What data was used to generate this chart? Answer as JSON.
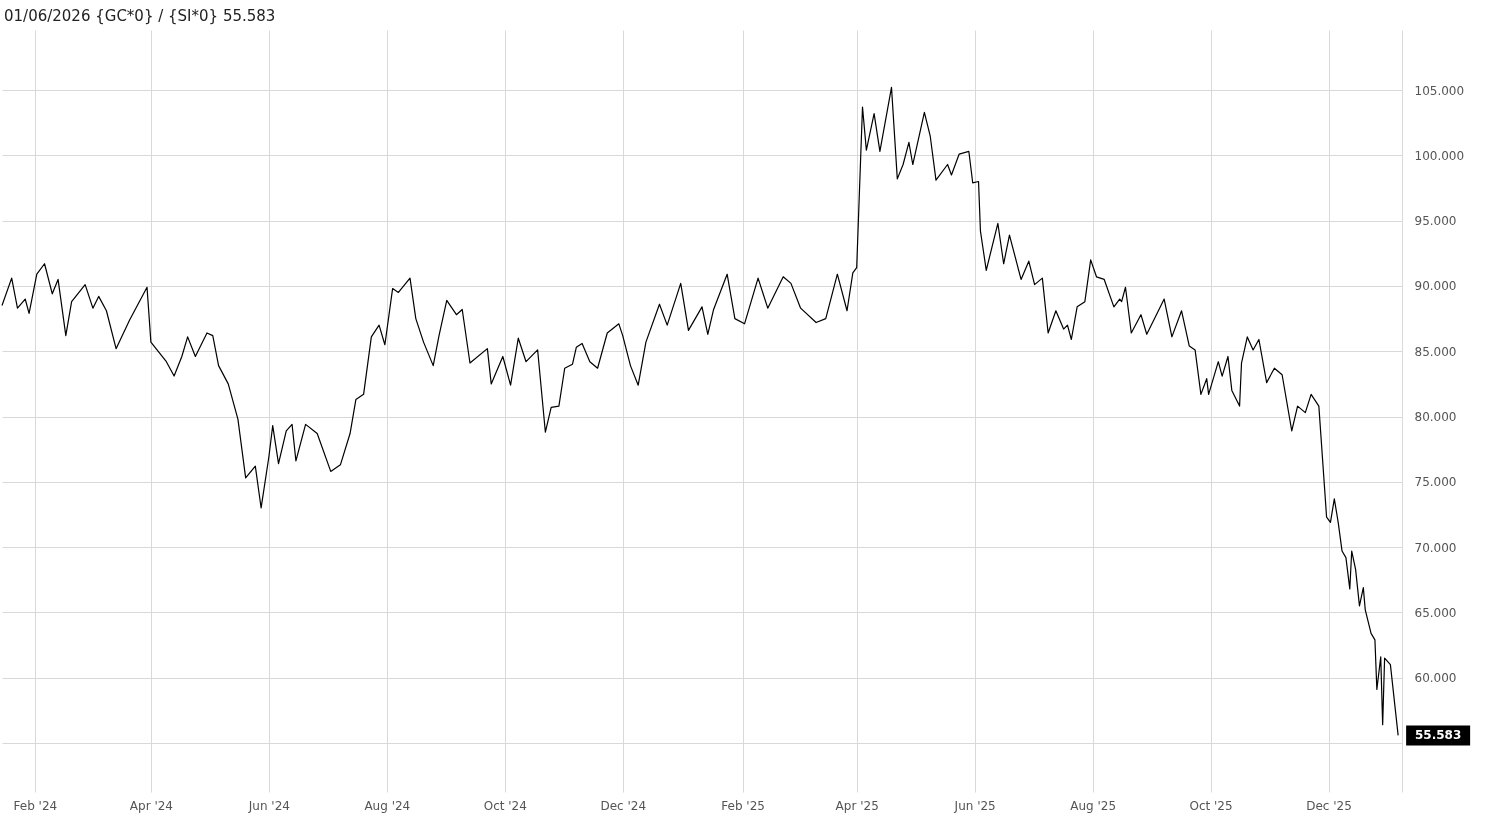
{
  "chart_data": {
    "type": "line",
    "title": "01/06/2026 {GC*0} / {SI*0} 55.583",
    "x": [
      "2024-01-15",
      "2024-01-20",
      "2024-01-23",
      "2024-01-27",
      "2024-01-29",
      "2024-02-02",
      "2024-02-06",
      "2024-02-10",
      "2024-02-13",
      "2024-02-17",
      "2024-02-20",
      "2024-02-27",
      "2024-03-02",
      "2024-03-05",
      "2024-03-09",
      "2024-03-14",
      "2024-03-21",
      "2024-03-30",
      "2024-04-01",
      "2024-04-09",
      "2024-04-13",
      "2024-04-17",
      "2024-04-20",
      "2024-04-24",
      "2024-04-30",
      "2024-05-03",
      "2024-05-06",
      "2024-05-11",
      "2024-05-16",
      "2024-05-20",
      "2024-05-25",
      "2024-05-28",
      "2024-06-01",
      "2024-06-03",
      "2024-06-06",
      "2024-06-10",
      "2024-06-13",
      "2024-06-15",
      "2024-06-20",
      "2024-06-26",
      "2024-07-03",
      "2024-07-08",
      "2024-07-13",
      "2024-07-16",
      "2024-07-20",
      "2024-07-24",
      "2024-07-28",
      "2024-07-31",
      "2024-08-04",
      "2024-08-07",
      "2024-08-13",
      "2024-08-16",
      "2024-08-20",
      "2024-08-25",
      "2024-08-28",
      "2024-09-01",
      "2024-09-06",
      "2024-09-09",
      "2024-09-13",
      "2024-09-22",
      "2024-09-24",
      "2024-09-30",
      "2024-10-04",
      "2024-10-08",
      "2024-10-12",
      "2024-10-18",
      "2024-10-22",
      "2024-10-25",
      "2024-10-29",
      "2024-11-01",
      "2024-11-05",
      "2024-11-07",
      "2024-11-10",
      "2024-11-14",
      "2024-11-18",
      "2024-11-23",
      "2024-11-29",
      "2024-12-01",
      "2024-12-05",
      "2024-12-09",
      "2024-12-13",
      "2024-12-20",
      "2024-12-24",
      "2024-12-31",
      "2025-01-04",
      "2025-01-11",
      "2025-01-14",
      "2025-01-17",
      "2025-01-24",
      "2025-01-28",
      "2025-02-02",
      "2025-02-09",
      "2025-02-14",
      "2025-02-22",
      "2025-02-26",
      "2025-03-03",
      "2025-03-11",
      "2025-03-16",
      "2025-03-22",
      "2025-03-27",
      "2025-03-30",
      "2025-04-01",
      "2025-04-04",
      "2025-04-06",
      "2025-04-10",
      "2025-04-13",
      "2025-04-19",
      "2025-04-22",
      "2025-04-25",
      "2025-04-28",
      "2025-04-30",
      "2025-05-06",
      "2025-05-09",
      "2025-05-12",
      "2025-05-18",
      "2025-05-20",
      "2025-05-24",
      "2025-05-29",
      "2025-05-31",
      "2025-06-03",
      "2025-06-04",
      "2025-06-07",
      "2025-06-13",
      "2025-06-16",
      "2025-06-19",
      "2025-06-25",
      "2025-06-29",
      "2025-07-02",
      "2025-07-06",
      "2025-07-09",
      "2025-07-13",
      "2025-07-17",
      "2025-07-19",
      "2025-07-21",
      "2025-07-24",
      "2025-07-28",
      "2025-07-31",
      "2025-08-03",
      "2025-08-07",
      "2025-08-12",
      "2025-08-15",
      "2025-08-16",
      "2025-08-18",
      "2025-08-21",
      "2025-08-26",
      "2025-08-29",
      "2025-09-03",
      "2025-09-07",
      "2025-09-11",
      "2025-09-16",
      "2025-09-20",
      "2025-09-23",
      "2025-09-26",
      "2025-09-29",
      "2025-09-30",
      "2025-10-05",
      "2025-10-07",
      "2025-10-10",
      "2025-10-12",
      "2025-10-16",
      "2025-10-17",
      "2025-10-20",
      "2025-10-23",
      "2025-10-26",
      "2025-10-30",
      "2025-11-03",
      "2025-11-07",
      "2025-11-12",
      "2025-11-15",
      "2025-11-19",
      "2025-11-22",
      "2025-11-26",
      "2025-11-30",
      "2025-12-02",
      "2025-12-04",
      "2025-12-06",
      "2025-12-08",
      "2025-12-10",
      "2025-12-12",
      "2025-12-13",
      "2025-12-15",
      "2025-12-17",
      "2025-12-19",
      "2025-12-20",
      "2025-12-23",
      "2025-12-25",
      "2025-12-26",
      "2025-12-28",
      "2025-12-29",
      "2025-12-30",
      "2026-01-02",
      "2026-01-06"
    ],
    "series": [
      {
        "color": "#000000",
        "values": [
          88.5,
          90.6,
          88.3,
          89.0,
          87.9,
          90.9,
          91.7,
          89.4,
          90.5,
          86.2,
          88.8,
          90.1,
          88.3,
          89.2,
          88.1,
          85.2,
          87.4,
          89.9,
          85.7,
          84.2,
          83.1,
          84.6,
          86.1,
          84.6,
          86.4,
          86.2,
          83.9,
          82.5,
          79.8,
          75.3,
          76.2,
          73.0,
          76.9,
          79.3,
          76.4,
          78.9,
          79.4,
          76.6,
          79.4,
          78.7,
          75.8,
          76.3,
          78.7,
          81.3,
          81.7,
          86.1,
          87.0,
          85.5,
          89.8,
          89.5,
          90.6,
          87.5,
          85.7,
          83.9,
          86.2,
          88.9,
          87.8,
          88.2,
          84.1,
          85.2,
          82.5,
          84.6,
          82.4,
          86.0,
          84.2,
          85.1,
          78.8,
          80.7,
          80.8,
          83.7,
          84.0,
          85.3,
          85.6,
          84.2,
          83.7,
          86.4,
          87.1,
          86.2,
          83.9,
          82.4,
          85.7,
          88.6,
          87.0,
          90.2,
          86.6,
          88.4,
          86.3,
          88.2,
          90.9,
          87.5,
          87.1,
          90.6,
          88.3,
          90.7,
          90.2,
          88.3,
          87.2,
          87.5,
          90.9,
          88.1,
          91.0,
          91.4,
          103.7,
          100.4,
          103.2,
          100.3,
          105.2,
          98.2,
          99.3,
          101.0,
          99.3,
          103.3,
          101.5,
          98.1,
          99.3,
          98.5,
          100.1,
          100.3,
          97.9,
          98.0,
          94.2,
          91.2,
          94.8,
          91.7,
          93.9,
          90.5,
          91.9,
          90.1,
          90.6,
          86.4,
          88.1,
          86.7,
          87.0,
          85.9,
          88.4,
          88.8,
          92.0,
          90.7,
          90.5,
          88.4,
          89.0,
          88.8,
          89.9,
          86.4,
          87.8,
          86.3,
          87.8,
          89.0,
          86.1,
          88.1,
          85.4,
          85.1,
          81.7,
          82.9,
          81.7,
          84.2,
          83.1,
          84.6,
          82.0,
          80.8,
          84.1,
          86.1,
          85.1,
          85.9,
          82.6,
          83.7,
          83.2,
          78.9,
          80.8,
          80.3,
          81.7,
          80.8,
          72.3,
          71.9,
          73.7,
          71.9,
          69.7,
          69.2,
          66.8,
          69.7,
          68.3,
          65.5,
          66.9,
          65.2,
          63.4,
          62.9,
          59.1,
          61.6,
          56.4,
          61.5,
          61.0,
          55.583
        ]
      }
    ],
    "xlim": [
      "2024-01-15",
      "2026-01-08"
    ],
    "xticks": [
      {
        "value": "2024-02-01",
        "label": "Feb '24"
      },
      {
        "value": "2024-04-01",
        "label": "Apr '24"
      },
      {
        "value": "2024-06-01",
        "label": "Jun '24"
      },
      {
        "value": "2024-08-01",
        "label": "Aug '24"
      },
      {
        "value": "2024-10-01",
        "label": "Oct '24"
      },
      {
        "value": "2024-12-01",
        "label": "Dec '24"
      },
      {
        "value": "2025-02-01",
        "label": "Feb '25"
      },
      {
        "value": "2025-04-01",
        "label": "Apr '25"
      },
      {
        "value": "2025-06-01",
        "label": "Jun '25"
      },
      {
        "value": "2025-08-01",
        "label": "Aug '25"
      },
      {
        "value": "2025-10-01",
        "label": "Oct '25"
      },
      {
        "value": "2025-12-01",
        "label": "Dec '25"
      }
    ],
    "ylim": [
      51.25,
      109.6
    ],
    "yticks": [
      {
        "value": 55,
        "label": null
      },
      {
        "value": 60,
        "label": "60.000"
      },
      {
        "value": 65,
        "label": "65.000"
      },
      {
        "value": 70,
        "label": "70.000"
      },
      {
        "value": 75,
        "label": "75.000"
      },
      {
        "value": 80,
        "label": "80.000"
      },
      {
        "value": 85,
        "label": "85.000"
      },
      {
        "value": 90,
        "label": "90.000"
      },
      {
        "value": 95,
        "label": "95.000"
      },
      {
        "value": 100,
        "label": "100.000"
      },
      {
        "value": 105,
        "label": "105.000"
      }
    ],
    "grid": true,
    "annotations": [
      {
        "text": "55.583",
        "x": "2026-01-06",
        "y": 55.583
      }
    ]
  }
}
